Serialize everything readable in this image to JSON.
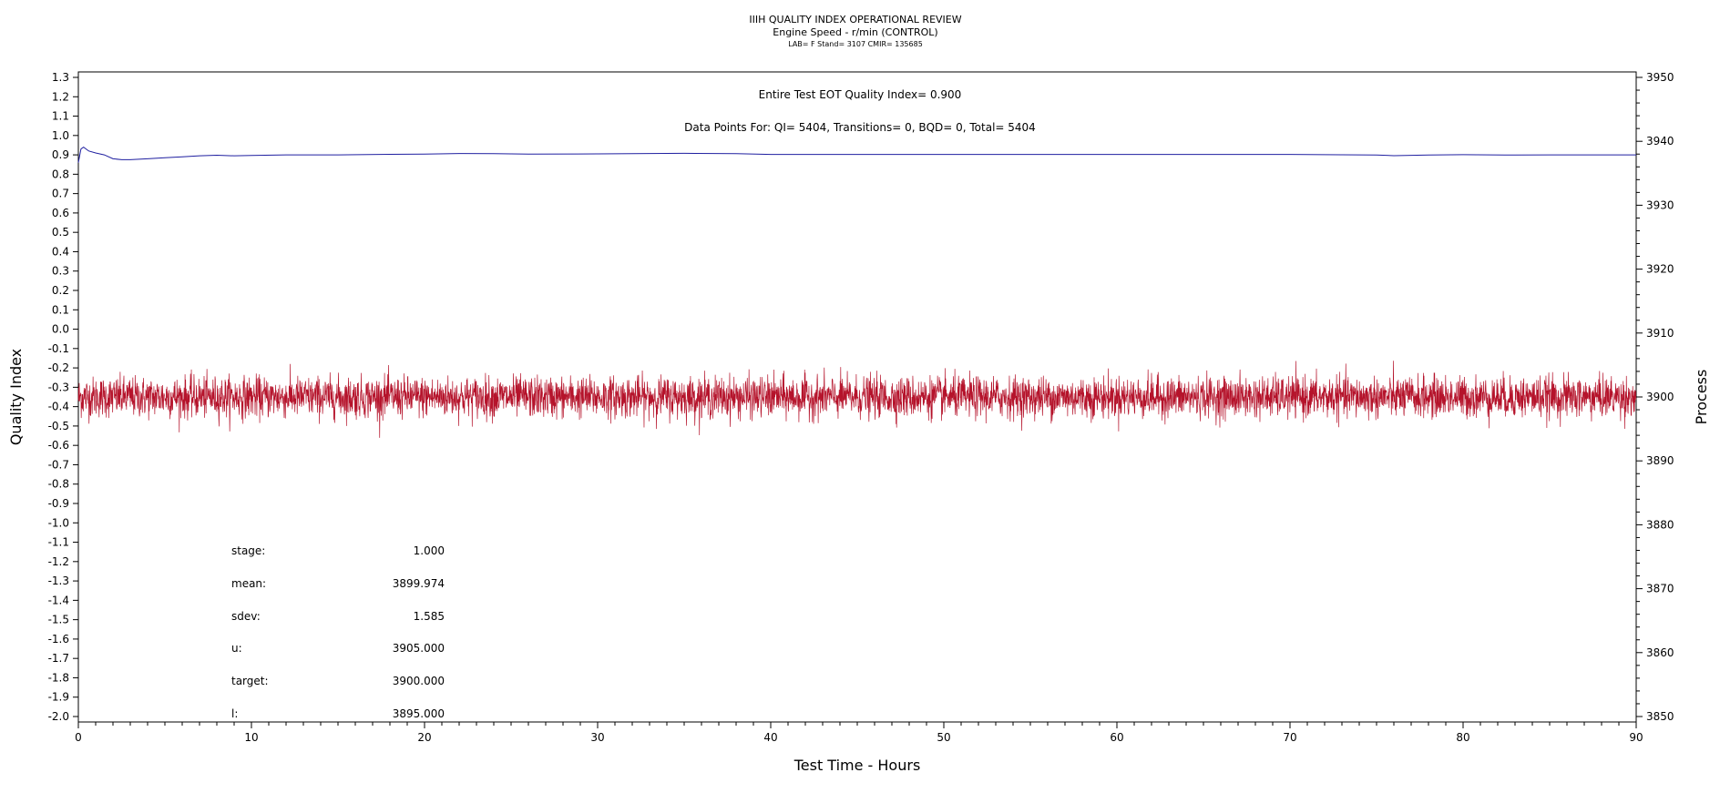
{
  "header": {
    "title": "IIIH QUALITY INDEX OPERATIONAL REVIEW",
    "subtitle": "Engine Speed - r/min (CONTROL)",
    "subsubtitle": "LAB= F Stand= 3107 CMIR= 135685"
  },
  "annotations": {
    "quality_index": "Entire Test EOT Quality Index=   0.900",
    "data_points": "Data Points For: QI=  5404, Transitions=     0, BQD=     0, Total=  5404"
  },
  "stats": [
    {
      "label": "stage:",
      "value": "1.000"
    },
    {
      "label": "mean:",
      "value": "3899.974"
    },
    {
      "label": "sdev:",
      "value": "1.585"
    },
    {
      "label": "u:",
      "value": "3905.000"
    },
    {
      "label": "target:",
      "value": "3900.000"
    },
    {
      "label": "l:",
      "value": "3895.000"
    }
  ],
  "chart_data": {
    "type": "line",
    "title": "IIIH QUALITY INDEX OPERATIONAL REVIEW",
    "xlabel": "Test Time - Hours",
    "ylabel": "Quality Index",
    "y2label": "Process",
    "xlim": [
      0,
      90
    ],
    "ylim": [
      -2.0,
      1.3
    ],
    "y2lim": [
      3850,
      3950
    ],
    "x_ticks": [
      "0",
      "10",
      "20",
      "30",
      "40",
      "50",
      "60",
      "70",
      "80",
      "90"
    ],
    "y_ticks": [
      "1.3",
      "1.2",
      "1.1",
      "1.0",
      "0.9",
      "0.8",
      "0.7",
      "0.6",
      "0.5",
      "0.4",
      "0.3",
      "0.2",
      "0.1",
      "0.0",
      "-0.1",
      "-0.2",
      "-0.3",
      "-0.4",
      "-0.5",
      "-0.6",
      "-0.7",
      "-0.8",
      "-0.9",
      "-1.0",
      "-1.1",
      "-1.2",
      "-1.3",
      "-1.4",
      "-1.5",
      "-1.6",
      "-1.7",
      "-1.8",
      "-1.9",
      "-2.0"
    ],
    "y2_ticks": [
      "3950",
      "3940",
      "3930",
      "3920",
      "3910",
      "3900",
      "3890",
      "3880",
      "3870",
      "3860",
      "3850"
    ],
    "grid": false,
    "series": [
      {
        "axis": "left",
        "color": "#1f1fa0",
        "points": [
          [
            0.0,
            0.86
          ],
          [
            0.15,
            0.93
          ],
          [
            0.3,
            0.94
          ],
          [
            0.6,
            0.92
          ],
          [
            1.0,
            0.91
          ],
          [
            1.5,
            0.9
          ],
          [
            2.0,
            0.88
          ],
          [
            2.5,
            0.875
          ],
          [
            3.0,
            0.875
          ],
          [
            4.0,
            0.88
          ],
          [
            5.0,
            0.885
          ],
          [
            6.0,
            0.89
          ],
          [
            7.0,
            0.895
          ],
          [
            8.0,
            0.898
          ],
          [
            9.0,
            0.895
          ],
          [
            10.0,
            0.897
          ],
          [
            12.0,
            0.9
          ],
          [
            15.0,
            0.9
          ],
          [
            18.0,
            0.903
          ],
          [
            20.0,
            0.904
          ],
          [
            22.0,
            0.907
          ],
          [
            24.0,
            0.906
          ],
          [
            26.0,
            0.904
          ],
          [
            30.0,
            0.905
          ],
          [
            35.0,
            0.908
          ],
          [
            38.0,
            0.906
          ],
          [
            40.0,
            0.902
          ],
          [
            42.0,
            0.902
          ],
          [
            45.0,
            0.902
          ],
          [
            50.0,
            0.902
          ],
          [
            55.0,
            0.902
          ],
          [
            60.0,
            0.902
          ],
          [
            65.0,
            0.902
          ],
          [
            70.0,
            0.902
          ],
          [
            75.0,
            0.899
          ],
          [
            76.0,
            0.896
          ],
          [
            78.0,
            0.899
          ],
          [
            80.0,
            0.901
          ],
          [
            83.0,
            0.899
          ],
          [
            85.0,
            0.9
          ],
          [
            90.0,
            0.9
          ]
        ]
      },
      {
        "axis": "right",
        "color": "#b5132b",
        "mean": 3899.974,
        "sdev": 1.585,
        "count": 5404
      }
    ]
  }
}
